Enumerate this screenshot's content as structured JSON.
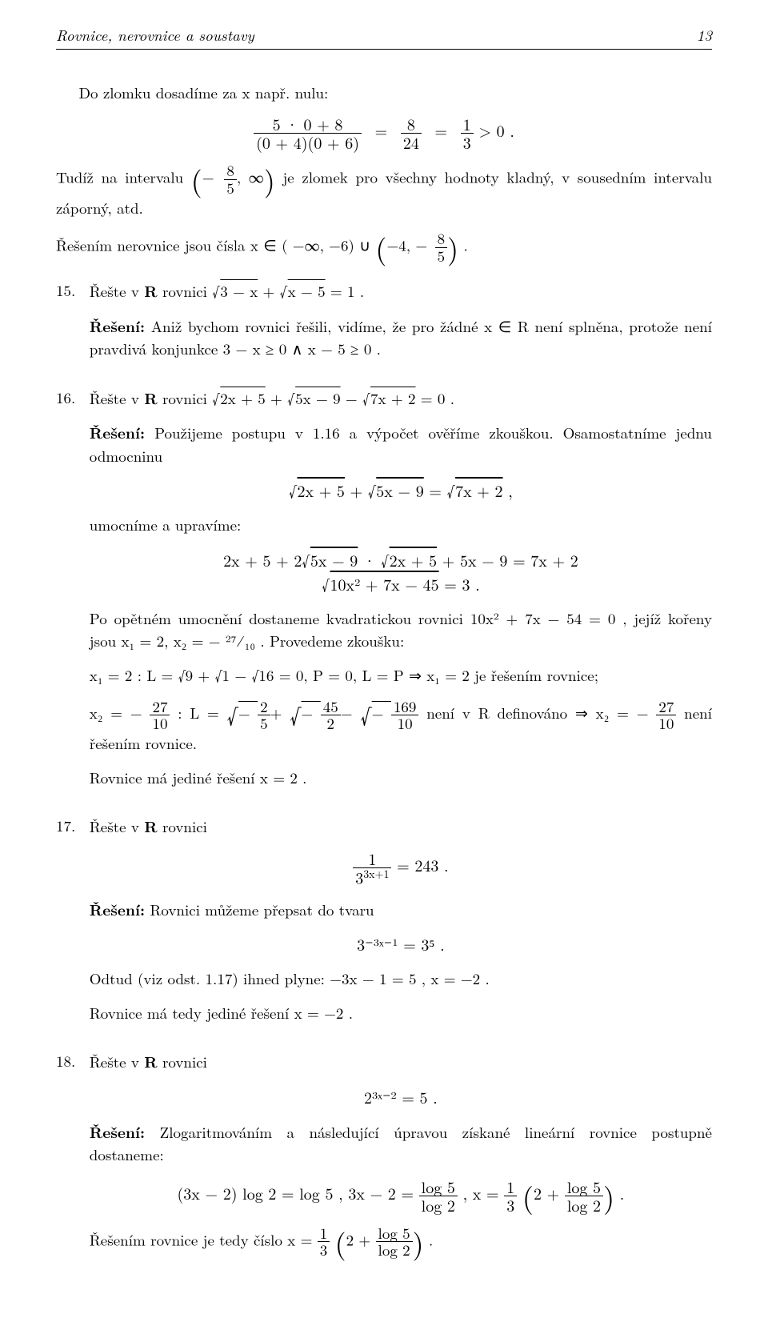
{
  "header": {
    "title": "Rovnice, nerovnice a soustavy",
    "page_number": "13"
  },
  "p1": "Do zlomku dosadíme za  x  např. nulu:",
  "eq1": {
    "lhs_num": "5 · 0 + 8",
    "lhs_den": "(0 + 4)(0 + 6)",
    "mid_num": "8",
    "mid_den": "24",
    "rhs_num": "1",
    "rhs_den": "3",
    "tail": " > 0 ."
  },
  "p2_a": "Tudíž na intervalu ",
  "p2_interval_num": "8",
  "p2_interval_den": "5",
  "p2_b": " je zlomek pro všechny hodnoty kladný, v sousedním intervalu záporný, atd.",
  "p3_a": "Řešením nerovnice jsou čísla  x ∈ ( −∞,  −6) ∪ ",
  "p3_num": "8",
  "p3_den": "5",
  "item15": {
    "num": "15.",
    "text_a": "Řešte v  ",
    "R": "R",
    "text_b": "  rovnici  ",
    "rad1": "3 − x",
    "rad2": "x − 5",
    "tail": " = 1 .",
    "sol_label": "Řešení:",
    "sol_text": " Aniž bychom rovnici řešili, vidíme, že pro žádné  x ∈ R  není splněna, protože není pravdivá konjunkce  3 − x ≥ 0  ∧  x − 5 ≥ 0 ."
  },
  "item16": {
    "num": "16.",
    "text_a": "Řešte v  ",
    "R": "R",
    "text_b": "  rovnici  ",
    "rad1": "2x + 5",
    "rad2": "5x − 9",
    "rad3": "7x + 2",
    "tail": " = 0 .",
    "sol_label": "Řešení:",
    "sol_text": " Použijeme postupu v 1.16 a výpočet ověříme zkouškou. Osamostatníme jednu odmocninu",
    "eq_line": " ,",
    "p_umoc": "umocníme a upravíme:",
    "eq2_line1_a": "2x + 5 + 2",
    "eq2_line1_r1": "5x − 9",
    "eq2_line1_r2": "2x + 5",
    "eq2_line1_b": " + 5x − 9 = 7x + 2",
    "eq2_line2_r": "10x² + 7x − 45",
    "eq2_line2_b": " = 3 .",
    "p_after": "Po opětném umocnění dostaneme kvadratickou rovnici  10x² + 7x − 54 = 0 , jejíž kořeny jsou x₁ = 2,  x₂ = − ²⁷⁄₁₀ .  Provedeme zkoušku:",
    "check1": "x₁ = 2 :   L = √9 + √1 − √16 = 0,  P = 0,  L = P ⇒ x₁ = 2  je řešením rovnice;",
    "check2_a": "x₂ = − ",
    "check2_f1n": "27",
    "check2_f1d": "10",
    "check2_b": " :   L = ",
    "check2_r1n": "2",
    "check2_r1d": "5",
    "check2_r2n": "45",
    "check2_r2d": "2",
    "check2_r3n": "169",
    "check2_r3d": "10",
    "check2_c": "  není v  R  definováno ⇒ x₂ = − ",
    "check2_d": "  není řešením rovnice.",
    "p_final": "Rovnice má jediné řešení  x = 2 ."
  },
  "item17": {
    "num": "17.",
    "text_a": "Řešte v  ",
    "R": "R",
    "text_b": "  rovnici",
    "eq_num": "1",
    "eq_den": "3",
    "eq_exp": "3x+1",
    "eq_rhs": " = 243 .",
    "sol_label": "Řešení:",
    "sol_text": " Rovnici můžeme přepsat do tvaru",
    "eq2": "3⁻³ˣ⁻¹ = 3⁵ .",
    "p_odtud": "Odtud (viz odst. 1.17) ihned plyne:  −3x − 1 = 5 ,   x = −2 .",
    "p_final": "Rovnice má tedy jediné řešení  x = −2 ."
  },
  "item18": {
    "num": "18.",
    "text_a": "Řešte v  ",
    "R": "R",
    "text_b": "  rovnici",
    "eq": "2³ˣ⁻² = 5 .",
    "sol_label": "Řešení:",
    "sol_text": " Zlogaritmováním a následující úpravou získané lineární rovnice postupně dostaneme:",
    "eq_line_a": "(3x − 2) log 2 = log 5 ,     3x − 2 = ",
    "eq_f1n": "log 5",
    "eq_f1d": "log 2",
    "eq_line_b": " ,     x = ",
    "eq_f2n": "1",
    "eq_f2d": "3",
    "eq_line_c": "2 + ",
    "eq_f3n": "log 5",
    "eq_f3d": "log 2",
    "p_final_a": "Řešením rovnice je tedy číslo  x = ",
    "p_final_b": "2 + "
  }
}
